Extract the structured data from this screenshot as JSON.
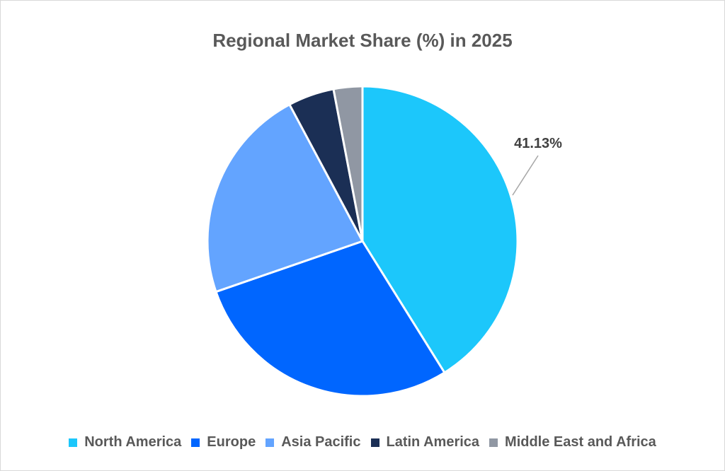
{
  "chart_data": {
    "type": "pie",
    "title": "Regional Market Share (%) in 2025",
    "categories": [
      "North America",
      "Europe",
      "Asia Pacific",
      "Latin America",
      "Middle East and Africa"
    ],
    "values": [
      41.13,
      28.57,
      22.5,
      4.8,
      3.0
    ],
    "colors": [
      "#1CC7FB",
      "#0066FF",
      "#63A4FF",
      "#1B2F55",
      "#9097A3"
    ],
    "data_labels": [
      {
        "category": "North America",
        "text": "41.13%"
      }
    ],
    "legend_position": "bottom",
    "start_angle_deg": 0,
    "direction": "clockwise"
  },
  "title": "Regional Market Share (%) in 2025",
  "label_na": "41.13%",
  "legend": [
    {
      "label": "North America",
      "color": "#1CC7FB"
    },
    {
      "label": "Europe",
      "color": "#0066FF"
    },
    {
      "label": "Asia Pacific",
      "color": "#63A4FF"
    },
    {
      "label": "Latin America",
      "color": "#1B2F55"
    },
    {
      "label": "Middle East and Africa",
      "color": "#9097A3"
    }
  ]
}
